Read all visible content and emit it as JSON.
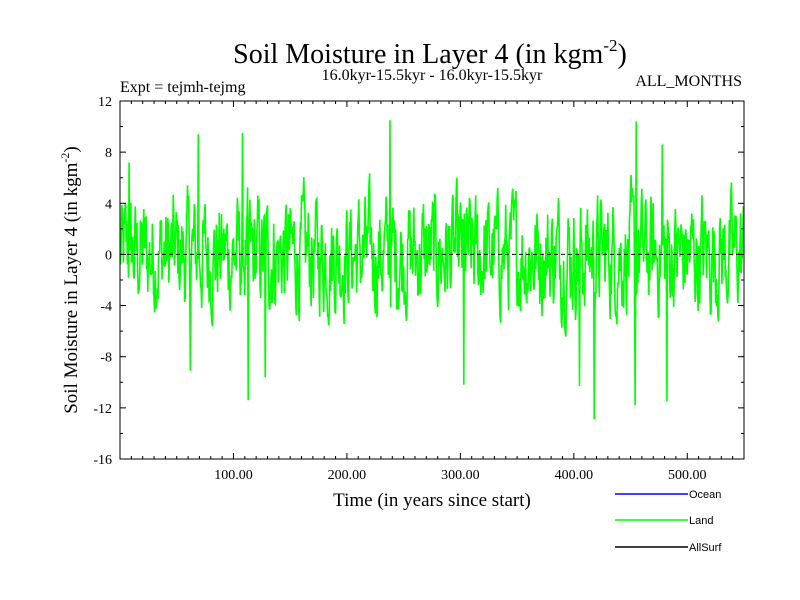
{
  "chart_data": {
    "type": "line",
    "title_main": "Soil Moisture in Layer 4 (in kgm",
    "title_sup": "-2",
    "title_end": ")",
    "expt_label": "Expt = tejmh-tejmg",
    "period_label": "16.0kyr-15.5kyr - 16.0kyr-15.5kyr",
    "months_label": "ALL_MONTHS",
    "xlabel": "Time (in years since start)",
    "ylabel_main": "Soil Moisture in Layer 4 (in kgm",
    "ylabel_sup": "-2",
    "ylabel_end": ")",
    "xlim": [
      0,
      550
    ],
    "ylim": [
      -16,
      12
    ],
    "x_ticks": [
      100,
      200,
      300,
      400,
      500
    ],
    "x_tick_labels": [
      "100.00",
      "200.00",
      "300.00",
      "400.00",
      "500.00"
    ],
    "y_ticks": [
      -16,
      -12,
      -8,
      -4,
      0,
      4,
      8,
      12
    ],
    "y_tick_labels": [
      "-16",
      "-12",
      "-8",
      "-4",
      "0",
      "4",
      "8",
      "12"
    ],
    "zero_line": 0,
    "series": [
      {
        "name": "Ocean",
        "color": "#0000ff",
        "values": []
      },
      {
        "name": "Land",
        "color": "#00ff00",
        "x_start": 0,
        "x_step": 0.5,
        "peaks": [
          {
            "x": 8,
            "y": 7.2
          },
          {
            "x": 69,
            "y": 9.4
          },
          {
            "x": 108,
            "y": 9.5
          },
          {
            "x": 238,
            "y": 10.5
          },
          {
            "x": 455,
            "y": 10.4
          },
          {
            "x": 478,
            "y": 8.6
          }
        ],
        "troughs": [
          {
            "x": 62,
            "y": -9.1
          },
          {
            "x": 113,
            "y": -11.4
          },
          {
            "x": 128,
            "y": -9.6
          },
          {
            "x": 303,
            "y": -10.2
          },
          {
            "x": 405,
            "y": -10.3
          },
          {
            "x": 418,
            "y": -12.9
          },
          {
            "x": 454,
            "y": -11.8
          },
          {
            "x": 482,
            "y": -11.5
          }
        ]
      },
      {
        "name": "AllSurf",
        "color": "#000000",
        "values": []
      }
    ],
    "legend_position": "bottom-right"
  }
}
